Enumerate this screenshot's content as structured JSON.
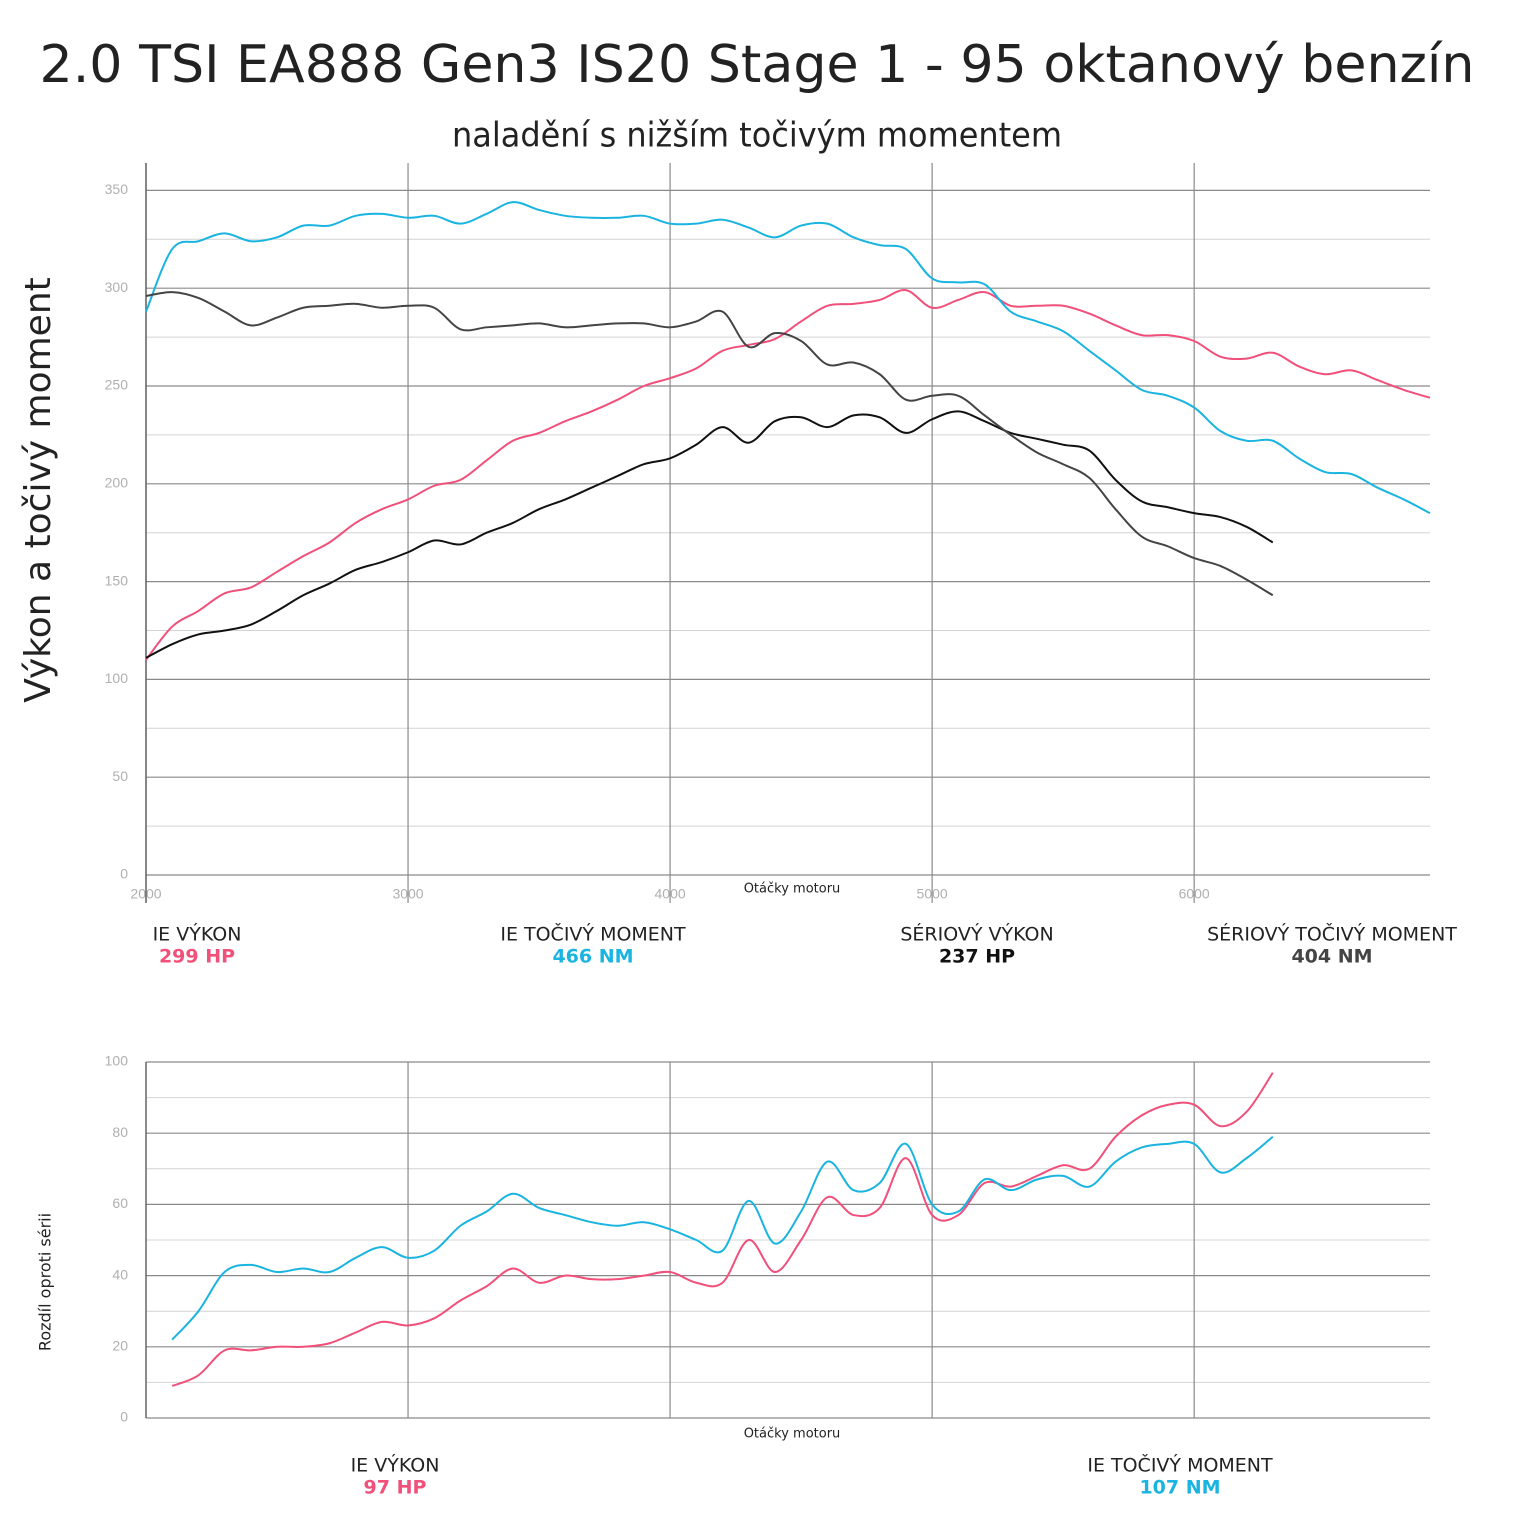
{
  "chart_data": [
    {
      "type": "line",
      "title": "2.0 TSI EA888 Gen3 IS20 Stage 1 - 95 oktanový benzín",
      "subtitle": "naladění s nižším točivým momentem",
      "y_label": "Výkon a točivý moment",
      "x_label": "Otáčky motoru",
      "x": [
        2000,
        2100,
        2200,
        2300,
        2400,
        2500,
        2600,
        2700,
        2800,
        2900,
        3000,
        3100,
        3200,
        3300,
        3400,
        3500,
        3600,
        3700,
        3800,
        3900,
        4000,
        4100,
        4200,
        4300,
        4400,
        4500,
        4600,
        4700,
        4800,
        4900,
        5000,
        5100,
        5200,
        5300,
        5400,
        5500,
        5600,
        5700,
        5800,
        5900,
        6000,
        6100,
        6200,
        6300,
        6400,
        6500,
        6600,
        6700,
        6800,
        6900
      ],
      "xlim": [
        2000,
        6900
      ],
      "xticks": [
        2000,
        3000,
        4000,
        5000,
        6000
      ],
      "ylim": [
        0,
        364
      ],
      "yticks": [
        0,
        50,
        100,
        150,
        200,
        250,
        300,
        350
      ],
      "minor_yticks": [
        25,
        75,
        125,
        175,
        225,
        275,
        325
      ],
      "series": [
        {
          "name": "IE VÝKON",
          "peak_label": "299 HP",
          "color": "#f0507a",
          "values": [
            110,
            127,
            135,
            144,
            147,
            155,
            163,
            170,
            180,
            187,
            192,
            199,
            202,
            212,
            222,
            226,
            232,
            237,
            243,
            250,
            254,
            259,
            268,
            271,
            274,
            283,
            291,
            292,
            294,
            299,
            290,
            294,
            298,
            291,
            291,
            291,
            287,
            281,
            276,
            276,
            273,
            265,
            264,
            267,
            260,
            256,
            258,
            253,
            248,
            244
          ]
        },
        {
          "name": "IE TOČIVÝ MOMENT",
          "peak_label": "466 NM",
          "color": "#1ab4e0",
          "values": [
            288,
            320,
            324,
            328,
            324,
            326,
            332,
            332,
            337,
            338,
            336,
            337,
            333,
            338,
            344,
            340,
            337,
            336,
            336,
            337,
            333,
            333,
            335,
            331,
            326,
            332,
            333,
            326,
            322,
            320,
            305,
            303,
            302,
            288,
            283,
            278,
            268,
            258,
            248,
            245,
            239,
            227,
            222,
            222,
            213,
            206,
            205,
            198,
            192,
            185
          ]
        },
        {
          "name": "SÉRIOVÝ VÝKON",
          "peak_label": "237 HP",
          "color": "#111111",
          "values": [
            111,
            118,
            123,
            125,
            128,
            135,
            143,
            149,
            156,
            160,
            165,
            171,
            169,
            175,
            180,
            187,
            192,
            198,
            204,
            210,
            213,
            220,
            229,
            221,
            232,
            234,
            229,
            235,
            234,
            226,
            233,
            237,
            232,
            226,
            223,
            220,
            217,
            202,
            191,
            188,
            185,
            183,
            178,
            170,
            null,
            null,
            null,
            null,
            null,
            null
          ]
        },
        {
          "name": "SÉRIOVÝ TOČIVÝ MOMENT",
          "peak_label": "404 NM",
          "color": "#444444",
          "values": [
            296,
            298,
            295,
            288,
            281,
            285,
            290,
            291,
            292,
            290,
            291,
            290,
            279,
            280,
            281,
            282,
            280,
            281,
            282,
            282,
            280,
            283,
            288,
            270,
            277,
            273,
            261,
            262,
            256,
            243,
            245,
            245,
            235,
            225,
            216,
            210,
            203,
            187,
            173,
            168,
            162,
            158,
            151,
            143,
            null,
            null,
            null,
            null,
            null,
            null
          ]
        }
      ]
    },
    {
      "type": "line",
      "y_label": "Rozdíl oproti sérii",
      "x_label": "Otáčky motoru",
      "x": [
        2100,
        2200,
        2300,
        2400,
        2500,
        2600,
        2700,
        2800,
        2900,
        3000,
        3100,
        3200,
        3300,
        3400,
        3500,
        3600,
        3700,
        3800,
        3900,
        4000,
        4100,
        4200,
        4300,
        4400,
        4500,
        4600,
        4700,
        4800,
        4900,
        5000,
        5100,
        5200,
        5300,
        5400,
        5500,
        5600,
        5700,
        5800,
        5900,
        6000,
        6100,
        6200,
        6300
      ],
      "xlim": [
        2000,
        6900
      ],
      "xgrid": [
        3000,
        4000,
        5000,
        6000
      ],
      "ylim": [
        0,
        100
      ],
      "yticks": [
        0,
        20,
        40,
        60,
        80,
        100
      ],
      "minor_yticks": [
        10,
        30,
        50,
        70,
        90
      ],
      "series": [
        {
          "name": "IE VÝKON",
          "peak_label": "97 HP",
          "color": "#f0507a",
          "values": [
            9,
            12,
            19,
            19,
            20,
            20,
            21,
            24,
            27,
            26,
            28,
            33,
            37,
            42,
            38,
            40,
            39,
            39,
            40,
            41,
            38,
            38,
            50,
            41,
            50,
            62,
            57,
            59,
            73,
            57,
            57,
            66,
            65,
            68,
            71,
            70,
            79,
            85,
            88,
            88,
            82,
            86,
            97
          ]
        },
        {
          "name": "IE TOČIVÝ MOMENT",
          "peak_label": "107 NM",
          "color": "#1ab4e0",
          "values": [
            22,
            30,
            41,
            43,
            41,
            42,
            41,
            45,
            48,
            45,
            47,
            54,
            58,
            63,
            59,
            57,
            55,
            54,
            55,
            53,
            50,
            47,
            61,
            49,
            58,
            72,
            64,
            66,
            77,
            60,
            58,
            67,
            64,
            67,
            68,
            65,
            72,
            76,
            77,
            77,
            69,
            73,
            79
          ]
        }
      ]
    }
  ]
}
